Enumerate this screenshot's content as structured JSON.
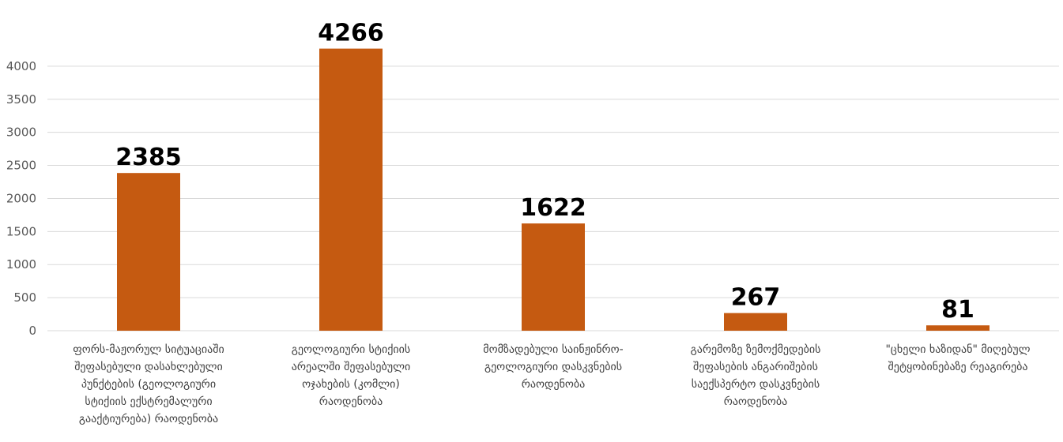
{
  "chart_data": {
    "type": "bar",
    "categories": [
      [
        "ფორს-მაჟორულ სიტუაციაში",
        "შეფასებული დასახლებული",
        "პუნქტების (გეოლოგიური",
        "სტიქიის ექსტრემალური",
        "გააქტიურება) რაოდენობა"
      ],
      [
        "გეოლოგიური სტიქიის",
        "არეალში შეფასებული",
        "ოჯახების (კომლი)",
        "რაოდენობა"
      ],
      [
        "მომზადებული საინჟინრო-",
        "გეოლოგიური დასკვნების",
        "რაოდენობა"
      ],
      [
        "გარემოზე ზემოქმედების",
        "შეფასების ანგარიშების",
        "საექსპერტო დასკვნების",
        "რაოდენობა"
      ],
      [
        "\"ცხელი ხაზიდან\" მიღებულ",
        "შეტყობინებაზე რეაგირება"
      ]
    ],
    "values": [
      2385,
      4266,
      1622,
      267,
      81
    ],
    "data_labels": [
      "2385",
      "4266",
      "1622",
      "267",
      "81"
    ],
    "yticks": [
      "0",
      "500",
      "1000",
      "1500",
      "2000",
      "2500",
      "3000",
      "3500",
      "4000"
    ],
    "ylim": [
      0,
      4500
    ],
    "grid": true,
    "bar_color": "#c55a11",
    "title": "",
    "xlabel": "",
    "ylabel": ""
  }
}
